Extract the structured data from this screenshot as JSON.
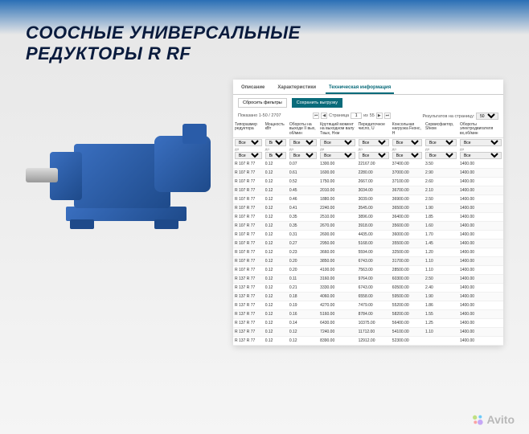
{
  "heading_line1": "СООСНЫЕ УНИВЕРСАЛЬНЫЕ",
  "heading_line2": "РЕДУКТОРЫ R RF",
  "tabs": {
    "description": "Описание",
    "specs": "Характеристики",
    "tech": "Техническая информация"
  },
  "toolbar": {
    "reset": "Сбросить фильтры",
    "save": "Сохранить выгрузку"
  },
  "pager": {
    "shown": "Показано 1-50 / 2707",
    "page_label": "Страница",
    "page_value": "1",
    "of_label": "из",
    "total_pages": "55",
    "perpage_label": "Результатов на страницу:",
    "perpage_value": "50"
  },
  "columns": [
    "Типоразмер редуктора",
    "Мощность кВт",
    "Обороты на выходе II вых, об/мин",
    "Крутящий момент на выходном валу Tвых, Нхм",
    "Передаточное число, U",
    "Консольная нагрузка Fконс, Н",
    "Сервисфактор, Sfном",
    "Обороты электродвигателя вх,об/мин"
  ],
  "filter": {
    "all": "Все",
    "to": "до"
  },
  "rows": [
    [
      "R 107 R 77",
      "0.12",
      "0.07",
      "1300.00",
      "22167.00",
      "37400.00",
      "3.50",
      "1400.00"
    ],
    [
      "R 107 R 77",
      "0.12",
      "0.61",
      "1600.00",
      "2280.00",
      "37000.00",
      "2.90",
      "1400.00"
    ],
    [
      "R 107 R 77",
      "0.12",
      "0.52",
      "1750.00",
      "2667.00",
      "37100.00",
      "2.60",
      "1400.00"
    ],
    [
      "R 107 R 77",
      "0.12",
      "0.45",
      "2010.00",
      "3034.00",
      "36700.00",
      "2.10",
      "1400.00"
    ],
    [
      "R 107 R 77",
      "0.12",
      "0.46",
      "1880.00",
      "3039.00",
      "36900.00",
      "2.50",
      "1400.00"
    ],
    [
      "R 107 R 77",
      "0.12",
      "0.41",
      "2240.00",
      "3545.00",
      "36500.00",
      "1.90",
      "1400.00"
    ],
    [
      "R 107 R 77",
      "0.12",
      "0.35",
      "2510.00",
      "3896.00",
      "36400.00",
      "1.85",
      "1400.00"
    ],
    [
      "R 107 R 77",
      "0.12",
      "0.35",
      "2670.00",
      "3918.00",
      "35600.00",
      "1.60",
      "1400.00"
    ],
    [
      "R 107 R 77",
      "0.12",
      "0.31",
      "2600.00",
      "4435.00",
      "36000.00",
      "1.70",
      "1400.00"
    ],
    [
      "R 107 R 77",
      "0.12",
      "0.27",
      "2950.00",
      "5168.00",
      "35500.00",
      "1.45",
      "1400.00"
    ],
    [
      "R 107 R 77",
      "0.12",
      "0.23",
      "3660.00",
      "5594.00",
      "32500.00",
      "1.20",
      "1400.00"
    ],
    [
      "R 107 R 77",
      "0.12",
      "0.20",
      "3850.00",
      "6743.00",
      "31700.00",
      "1.10",
      "1400.00"
    ],
    [
      "R 107 R 77",
      "0.12",
      "0.20",
      "4100.00",
      "7563.00",
      "28500.00",
      "1.10",
      "1400.00"
    ],
    [
      "R 137 R 77",
      "0.12",
      "0.11",
      "3160.00",
      "9764.00",
      "60300.00",
      "2.50",
      "1400.00"
    ],
    [
      "R 137 R 77",
      "0.12",
      "0.21",
      "3330.00",
      "6743.00",
      "60500.00",
      "2.40",
      "1400.00"
    ],
    [
      "R 137 R 77",
      "0.12",
      "0.18",
      "4060.00",
      "6558.00",
      "59500.00",
      "1.90",
      "1400.00"
    ],
    [
      "R 137 R 77",
      "0.12",
      "0.19",
      "4270.00",
      "7479.00",
      "55200.00",
      "1.86",
      "1400.00"
    ],
    [
      "R 137 R 77",
      "0.12",
      "0.16",
      "5160.00",
      "8784.00",
      "58200.00",
      "1.55",
      "1400.00"
    ],
    [
      "R 137 R 77",
      "0.12",
      "0.14",
      "6430.00",
      "10375.00",
      "56400.00",
      "1.25",
      "1400.00"
    ],
    [
      "R 137 R 77",
      "0.12",
      "0.12",
      "7240.00",
      "11712.00",
      "54100.00",
      "1.10",
      "1400.00"
    ],
    [
      "R 137 R 77",
      "0.12",
      "0.12",
      "8390.00",
      "12912.00",
      "52300.00",
      "",
      "1400.00"
    ]
  ],
  "watermark": "Avito",
  "colors": {
    "accent": "#0a6b7a",
    "heading": "#0a1b3d",
    "gearbox": "#2a5ca8"
  }
}
